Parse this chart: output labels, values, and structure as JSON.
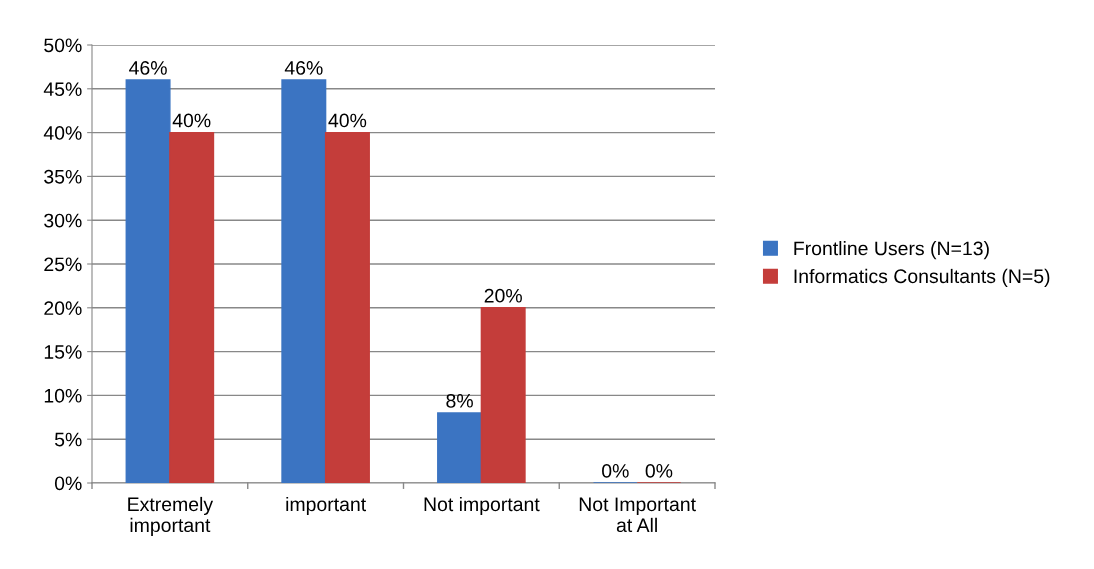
{
  "chart_data": {
    "type": "bar",
    "categories": [
      "Extremely\nimportant",
      "important",
      "Not important",
      "Not Important\nat All"
    ],
    "series": [
      {
        "name": "Frontline Users (N=13)",
        "color": "#3b74c2",
        "values": [
          46,
          46,
          8,
          0
        ],
        "value_labels": [
          "46%",
          "46%",
          "8%",
          "0%"
        ]
      },
      {
        "name": "Informatics Consultants (N=5)",
        "color": "#c43d3a",
        "values": [
          40,
          40,
          20,
          0
        ],
        "value_labels": [
          "40%",
          "40%",
          "20%",
          "0%"
        ]
      }
    ],
    "ylim": [
      0,
      50
    ],
    "yticks": [
      {
        "value": 0,
        "label": "0%"
      },
      {
        "value": 5,
        "label": "5%"
      },
      {
        "value": 10,
        "label": "10%"
      },
      {
        "value": 15,
        "label": "15%"
      },
      {
        "value": 20,
        "label": "20%"
      },
      {
        "value": 25,
        "label": "25%"
      },
      {
        "value": 30,
        "label": "30%"
      },
      {
        "value": 35,
        "label": "35%"
      },
      {
        "value": 40,
        "label": "40%"
      },
      {
        "value": 45,
        "label": "45%"
      },
      {
        "value": 50,
        "label": "50%"
      }
    ],
    "grid": "y",
    "legend": "right"
  }
}
